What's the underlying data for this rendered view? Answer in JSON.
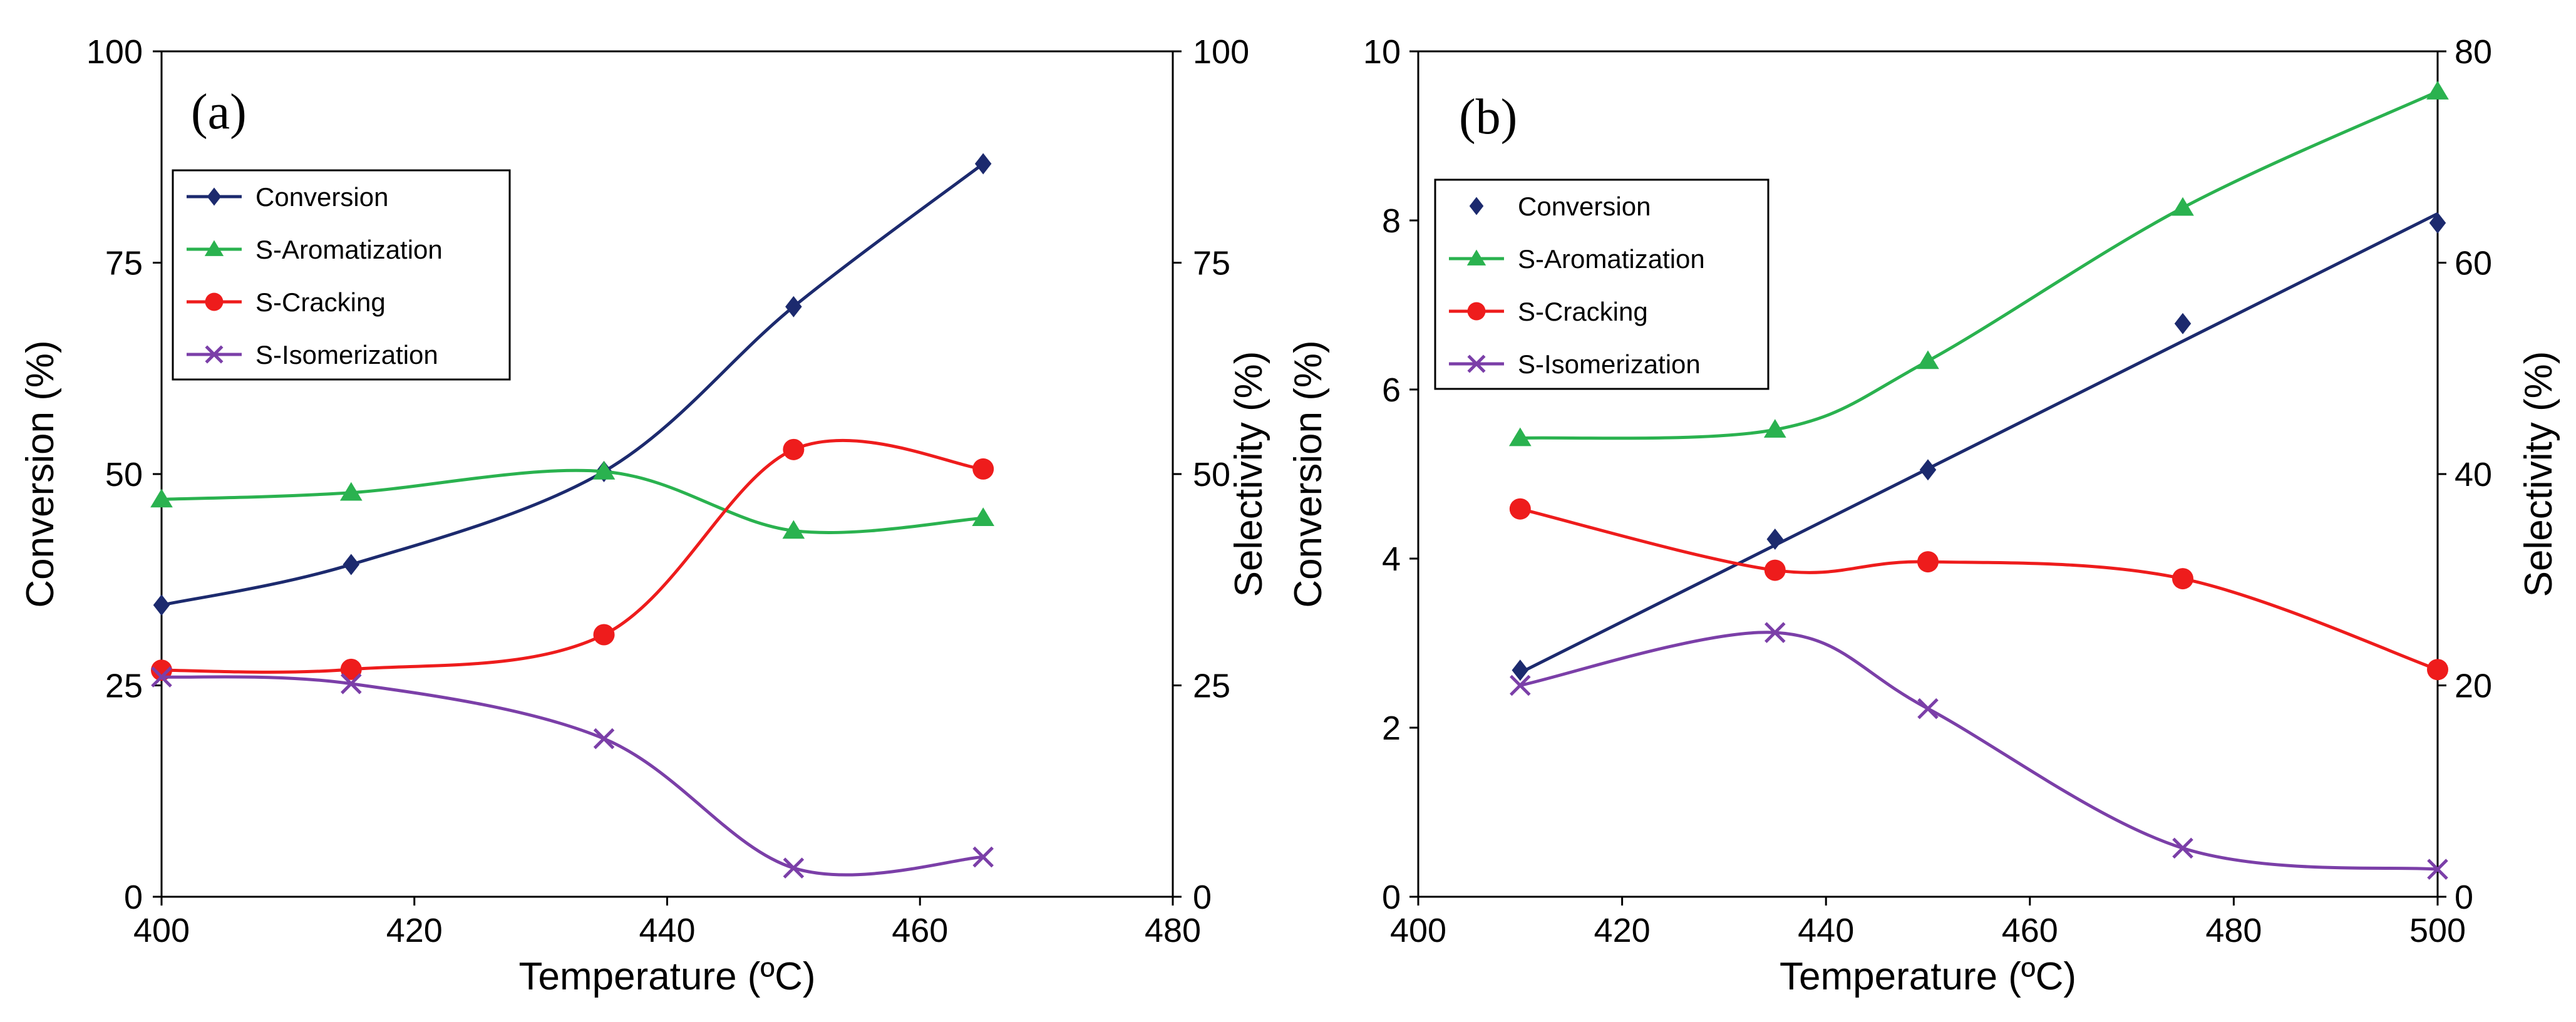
{
  "colors": {
    "conversion": "#1c2a6e",
    "aromatization": "#2ab24f",
    "cracking": "#ee1c1c",
    "isomerization": "#7b3fa8"
  },
  "chart_data": [
    {
      "type": "line",
      "panel_label": "(a)",
      "xlabel": "Temperature (ºC)",
      "ylabel": "Conversion (%)",
      "y2label": "Selectivity (%)",
      "xlim": [
        400,
        480
      ],
      "ylim": [
        0,
        100
      ],
      "y2lim": [
        0,
        100
      ],
      "x_ticks": [
        "400",
        "420",
        "440",
        "460",
        "480"
      ],
      "y_ticks": [
        "0",
        "25",
        "50",
        "75",
        "100"
      ],
      "y2_ticks": [
        "0",
        "25",
        "50",
        "75",
        "100"
      ],
      "legend_position": "upper-left",
      "series": [
        {
          "name": "Conversion",
          "marker": "diamond",
          "line": true,
          "axis": "left",
          "x": [
            400,
            415,
            435,
            450,
            465
          ],
          "values": [
            34.5,
            39.3,
            50.3,
            69.8,
            86.7
          ]
        },
        {
          "name": "S-Aromatization",
          "marker": "triangle",
          "line": true,
          "axis": "right",
          "x": [
            400,
            415,
            435,
            450,
            465
          ],
          "values": [
            47.0,
            47.8,
            50.3,
            43.3,
            44.8
          ]
        },
        {
          "name": "S-Cracking",
          "marker": "circle",
          "line": true,
          "axis": "right",
          "x": [
            400,
            415,
            435,
            450,
            465
          ],
          "values": [
            26.8,
            26.9,
            31.0,
            52.9,
            50.6
          ]
        },
        {
          "name": "S-Isomerization",
          "marker": "x",
          "line": true,
          "axis": "right",
          "x": [
            400,
            415,
            435,
            450,
            465
          ],
          "values": [
            26.0,
            25.2,
            18.7,
            3.4,
            4.7
          ]
        }
      ]
    },
    {
      "type": "line",
      "panel_label": "(b)",
      "xlabel": "Temperature (ºC)",
      "ylabel": "Conversion (%)",
      "y2label": "Selectivity (%)",
      "xlim": [
        400,
        500
      ],
      "ylim": [
        0,
        10
      ],
      "y2lim": [
        0,
        80
      ],
      "x_ticks": [
        "400",
        "420",
        "440",
        "460",
        "480",
        "500"
      ],
      "y_ticks": [
        "0",
        "2",
        "4",
        "6",
        "8",
        "10"
      ],
      "y2_ticks": [
        "0",
        "20",
        "40",
        "60",
        "80"
      ],
      "legend_position": "upper-left",
      "series": [
        {
          "name": "Conversion",
          "marker": "diamond",
          "line": false,
          "axis": "left",
          "x": [
            410,
            435,
            450,
            475,
            500
          ],
          "values": [
            2.68,
            4.23,
            5.05,
            6.78,
            7.97
          ],
          "trendline": {
            "x": [
              410,
              500
            ],
            "y": [
              2.65,
              8.08
            ]
          }
        },
        {
          "name": "S-Aromatization",
          "marker": "triangle",
          "line": true,
          "axis": "right",
          "x": [
            410,
            435,
            450,
            475,
            500
          ],
          "values": [
            43.4,
            44.2,
            50.7,
            65.2,
            76.2
          ]
        },
        {
          "name": "S-Cracking",
          "marker": "circle",
          "line": true,
          "axis": "right",
          "x": [
            410,
            435,
            450,
            475,
            500
          ],
          "values": [
            36.7,
            30.9,
            31.7,
            30.1,
            21.5
          ]
        },
        {
          "name": "S-Isomerization",
          "marker": "x",
          "line": true,
          "axis": "right",
          "x": [
            410,
            435,
            450,
            475,
            500
          ],
          "values": [
            20.0,
            25.0,
            17.8,
            4.6,
            2.6
          ]
        }
      ]
    }
  ]
}
